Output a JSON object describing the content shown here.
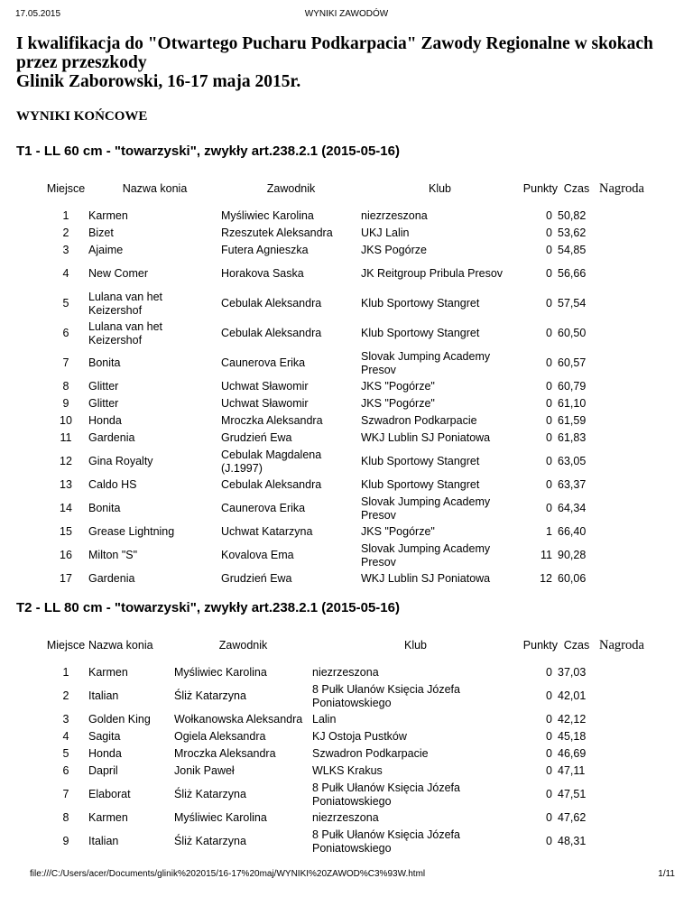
{
  "header": {
    "date": "17.05.2015",
    "title": "WYNIKI ZAWODÓW"
  },
  "doc_title": "I kwalifikacja do \"Otwartego Pucharu Podkarpacia\" Zawody Regionalne w skokach przez przeszkody\nGlinik Zaborowski, 16-17 maja 2015r.",
  "subtitle": "WYNIKI KOŃCOWE",
  "columns": [
    "Miejsce",
    "Nazwa konia",
    "Zawodnik",
    "Klub",
    "Punkty",
    "Czas",
    "Nagroda"
  ],
  "competitions": [
    {
      "title": "T1 - LL 60 cm - \"towarzyski\", zwykły art.238.2.1 (2015-05-16)",
      "rows": [
        [
          "1",
          "Karmen",
          "Myśliwiec Karolina",
          "niezrzeszona",
          "0",
          "50,82"
        ],
        [
          "2",
          "Bizet",
          "Rzeszutek Aleksandra",
          "UKJ Lalin",
          "0",
          "53,62"
        ],
        [
          "3",
          "Ajaime",
          "Futera Agnieszka",
          "JKS Pogórze",
          "0",
          "54,85"
        ],
        [
          "4",
          "New Comer",
          "Horakova Saska",
          "JK Reitgroup Pribula Presov",
          "0",
          "56,66"
        ],
        [
          "5",
          "Lulana van het Keizershof",
          "Cebulak Aleksandra",
          "Klub Sportowy Stangret",
          "0",
          "57,54"
        ],
        [
          "6",
          "Lulana van het Keizershof",
          "Cebulak Aleksandra",
          "Klub Sportowy Stangret",
          "0",
          "60,50"
        ],
        [
          "7",
          "Bonita",
          "Caunerova Erika",
          "Slovak Jumping Academy Presov",
          "0",
          "60,57"
        ],
        [
          "8",
          "Glitter",
          "Uchwat Sławomir",
          "JKS \"Pogórze\"",
          "0",
          "60,79"
        ],
        [
          "9",
          "Glitter",
          "Uchwat Sławomir",
          "JKS \"Pogórze\"",
          "0",
          "61,10"
        ],
        [
          "10",
          "Honda",
          "Mroczka Aleksandra",
          "Szwadron Podkarpacie",
          "0",
          "61,59"
        ],
        [
          "11",
          "Gardenia",
          "Grudzień Ewa",
          "WKJ Lublin SJ Poniatowa",
          "0",
          "61,83"
        ],
        [
          "12",
          "Gina Royalty",
          "Cebulak Magdalena (J.1997)",
          "Klub Sportowy Stangret",
          "0",
          "63,05"
        ],
        [
          "13",
          "Caldo HS",
          "Cebulak Aleksandra",
          "Klub Sportowy Stangret",
          "0",
          "63,37"
        ],
        [
          "14",
          "Bonita",
          "Caunerova Erika",
          "Slovak Jumping Academy Presov",
          "0",
          "64,34"
        ],
        [
          "15",
          "Grease Lightning",
          "Uchwat Katarzyna",
          "JKS \"Pogórze\"",
          "1",
          "66,40"
        ],
        [
          "16",
          "Milton \"S\"",
          "Kovalova Ema",
          "Slovak Jumping Academy Presov",
          "11",
          "90,28"
        ],
        [
          "17",
          "Gardenia",
          "Grudzień Ewa",
          "WKJ Lublin SJ Poniatowa",
          "12",
          "60,06"
        ]
      ]
    },
    {
      "title": "T2 - LL 80 cm - \"towarzyski\", zwykły art.238.2.1 (2015-05-16)",
      "rows": [
        [
          "1",
          "Karmen",
          "Myśliwiec Karolina",
          "niezrzeszona",
          "0",
          "37,03"
        ],
        [
          "2",
          "Italian",
          "Śliż Katarzyna",
          "8 Pułk Ułanów Księcia Józefa Poniatowskiego",
          "0",
          "42,01"
        ],
        [
          "3",
          "Golden King",
          "Wołkanowska Aleksandra",
          "Lalin",
          "0",
          "42,12"
        ],
        [
          "4",
          "Sagita",
          "Ogiela Aleksandra",
          "KJ Ostoja Pustków",
          "0",
          "45,18"
        ],
        [
          "5",
          "Honda",
          "Mroczka Aleksandra",
          "Szwadron Podkarpacie",
          "0",
          "46,69"
        ],
        [
          "6",
          "Dapril",
          "Jonik Paweł",
          "WLKS Krakus",
          "0",
          "47,11"
        ],
        [
          "7",
          "Elaborat",
          "Śliż Katarzyna",
          "8 Pułk Ułanów Księcia Józefa Poniatowskiego",
          "0",
          "47,51"
        ],
        [
          "8",
          "Karmen",
          "Myśliwiec Karolina",
          "niezrzeszona",
          "0",
          "47,62"
        ],
        [
          "9",
          "Italian",
          "Śliż Katarzyna",
          "8 Pułk Ułanów Księcia Józefa Poniatowskiego",
          "0",
          "48,31"
        ]
      ]
    }
  ],
  "footer": {
    "url": "file:///C:/Users/acer/Documents/glinik%202015/16-17%20maj/WYNIKI%20ZAWOD%C3%93W.html",
    "page": "1/11"
  }
}
